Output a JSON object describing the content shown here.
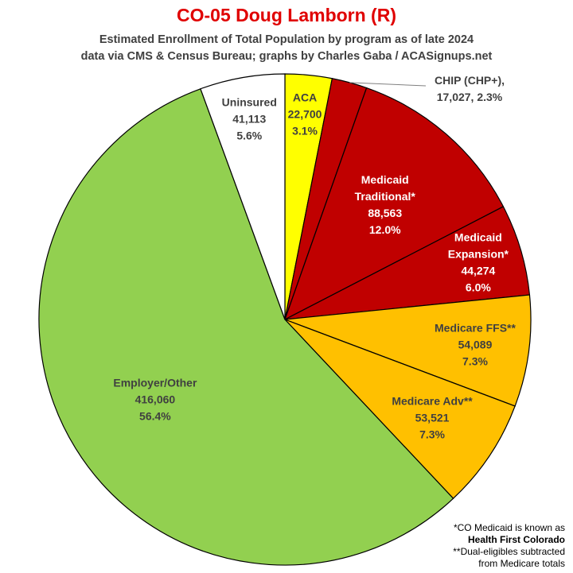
{
  "chart_data": {
    "type": "pie",
    "title": "CO-05 Doug Lamborn (R)",
    "subtitle_lines": [
      "Estimated Enrollment of Total Population by program as of late 2024",
      "data via CMS & Census Bureau; graphs by Charles Gaba / ACASignups.net"
    ],
    "slices": [
      {
        "name": "ACA",
        "value": 22700,
        "value_label": "22,700",
        "percent": "3.1%",
        "color": "#ffff00",
        "label_lines": [
          "ACA"
        ]
      },
      {
        "name": "CHIP (CHP+),",
        "value": 17027,
        "value_label": "17,027, 2.3%",
        "percent": "2.3%",
        "color": "#c00000",
        "label_lines": [
          "CHIP (CHP+),"
        ]
      },
      {
        "name": "Medicaid Traditional*",
        "value": 88563,
        "value_label": "88,563",
        "percent": "12.0%",
        "color": "#c00000",
        "label_lines": [
          "Medicaid",
          "Traditional*"
        ]
      },
      {
        "name": "Medicaid Expansion*",
        "value": 44274,
        "value_label": "44,274",
        "percent": "6.0%",
        "color": "#c00000",
        "label_lines": [
          "Medicaid",
          "Expansion*"
        ]
      },
      {
        "name": "Medicare FFS**",
        "value": 54089,
        "value_label": "54,089",
        "percent": "7.3%",
        "color": "#ffc000",
        "label_lines": [
          "Medicare FFS**"
        ]
      },
      {
        "name": "Medicare Adv**",
        "value": 53521,
        "value_label": "53,521",
        "percent": "7.3%",
        "color": "#ffc000",
        "label_lines": [
          "Medicare Adv**"
        ]
      },
      {
        "name": "Employer/Other",
        "value": 416060,
        "value_label": "416,060",
        "percent": "56.4%",
        "color": "#92d050",
        "label_lines": [
          "Employer/Other"
        ]
      },
      {
        "name": "Uninsured",
        "value": 41113,
        "value_label": "41,113",
        "percent": "5.6%",
        "color": "#ffffff",
        "label_lines": [
          "Uninsured"
        ]
      }
    ],
    "footnotes": {
      "line1": "*CO Medicaid is known as",
      "line2": "Health First Colorado",
      "line3": "**Dual-eligibles subtracted",
      "line4": "from Medicare totals"
    }
  },
  "colors": {
    "title": "#e00000",
    "label_dark": "#404040",
    "label_light": "#ffffff"
  }
}
